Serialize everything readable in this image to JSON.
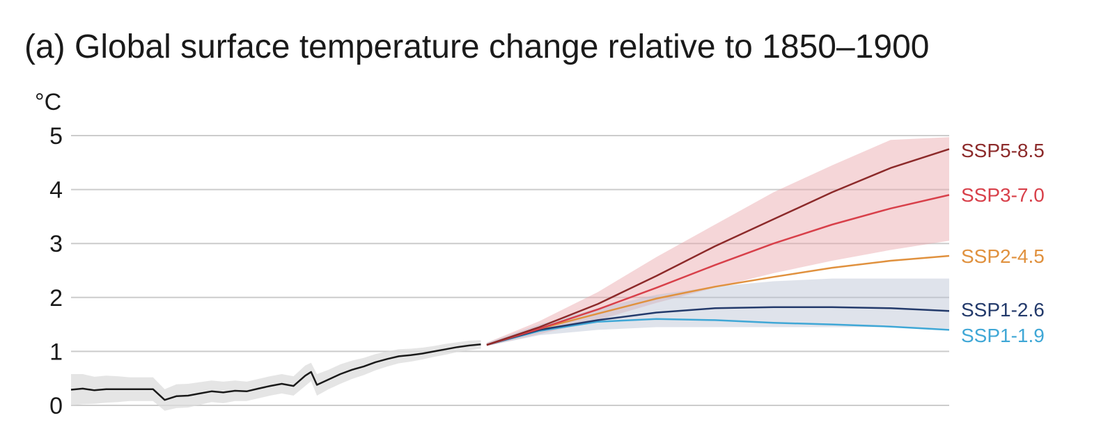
{
  "chart_data": {
    "type": "line",
    "title": "(a) Global surface temperature change relative to 1850–1900",
    "ylabel": "°C",
    "xlabel": "",
    "ylim": [
      0,
      5
    ],
    "xlim": [
      1950,
      2100
    ],
    "yticks": [
      "0",
      "1",
      "2",
      "3",
      "4",
      "5"
    ],
    "grid": true,
    "colors": {
      "historical": "#1a1a1a",
      "historical_band": "#dcdcdc",
      "ssp585": "#8c2a2a",
      "ssp370": "#d8404a",
      "ssp245": "#e0913e",
      "ssp126": "#233a6b",
      "ssp119": "#3fa7d6",
      "band_high": "#e9a3a8",
      "band_low": "#b9c0d3",
      "gridline": "#cccccc"
    },
    "historical": {
      "x": [
        1950,
        1952,
        1954,
        1956,
        1958,
        1960,
        1962,
        1964,
        1966,
        1968,
        1970,
        1972,
        1974,
        1976,
        1978,
        1980,
        1982,
        1984,
        1986,
        1988,
        1990,
        1991,
        1992,
        1994,
        1996,
        1998,
        2000,
        2002,
        2004,
        2006,
        2008,
        2010,
        2012,
        2014,
        2016,
        2018,
        2020
      ],
      "y": [
        0.29,
        0.31,
        0.28,
        0.3,
        0.3,
        0.3,
        0.3,
        0.3,
        0.1,
        0.17,
        0.18,
        0.22,
        0.26,
        0.24,
        0.27,
        0.26,
        0.31,
        0.36,
        0.4,
        0.36,
        0.55,
        0.62,
        0.38,
        0.48,
        0.58,
        0.66,
        0.72,
        0.8,
        0.86,
        0.91,
        0.93,
        0.96,
        1.0,
        1.04,
        1.08,
        1.11,
        1.13
      ],
      "band_low": [
        0.0,
        0.02,
        0.03,
        0.05,
        0.06,
        0.08,
        0.08,
        0.08,
        -0.1,
        -0.05,
        -0.04,
        0.01,
        0.06,
        0.04,
        0.08,
        0.08,
        0.13,
        0.18,
        0.22,
        0.18,
        0.36,
        0.45,
        0.18,
        0.3,
        0.4,
        0.49,
        0.56,
        0.65,
        0.72,
        0.78,
        0.81,
        0.85,
        0.9,
        0.94,
        0.99,
        1.02,
        1.05
      ],
      "band_high": [
        0.58,
        0.58,
        0.53,
        0.55,
        0.54,
        0.52,
        0.52,
        0.52,
        0.3,
        0.39,
        0.4,
        0.43,
        0.46,
        0.44,
        0.46,
        0.44,
        0.49,
        0.54,
        0.58,
        0.54,
        0.74,
        0.79,
        0.58,
        0.66,
        0.76,
        0.83,
        0.88,
        0.95,
        1.0,
        1.04,
        1.05,
        1.07,
        1.1,
        1.14,
        1.17,
        1.2,
        1.21
      ]
    },
    "projections_x": [
      2021,
      2030,
      2040,
      2050,
      2060,
      2070,
      2080,
      2090,
      2100
    ],
    "series": [
      {
        "key": "ssp585",
        "name": "SSP5-8.5",
        "values": [
          1.12,
          1.45,
          1.88,
          2.4,
          2.95,
          3.45,
          3.95,
          4.4,
          4.75
        ]
      },
      {
        "key": "ssp370",
        "name": "SSP3-7.0",
        "values": [
          1.12,
          1.42,
          1.78,
          2.18,
          2.6,
          3.0,
          3.35,
          3.65,
          3.9
        ]
      },
      {
        "key": "ssp245",
        "name": "SSP2-4.5",
        "values": [
          1.12,
          1.42,
          1.7,
          1.98,
          2.2,
          2.38,
          2.55,
          2.68,
          2.77
        ]
      },
      {
        "key": "ssp126",
        "name": "SSP1-2.6",
        "values": [
          1.12,
          1.4,
          1.58,
          1.72,
          1.8,
          1.82,
          1.82,
          1.8,
          1.75
        ]
      },
      {
        "key": "ssp119",
        "name": "SSP1-1.9",
        "values": [
          1.12,
          1.38,
          1.55,
          1.6,
          1.58,
          1.53,
          1.5,
          1.46,
          1.4
        ]
      }
    ],
    "bands": [
      {
        "key": "band_high",
        "for": "SSP3-7.0",
        "low": [
          1.1,
          1.32,
          1.58,
          1.9,
          2.18,
          2.45,
          2.68,
          2.88,
          3.05
        ],
        "high": [
          1.16,
          1.56,
          2.1,
          2.75,
          3.35,
          3.95,
          4.45,
          4.92,
          4.97
        ]
      },
      {
        "key": "band_low",
        "for": "SSP1-2.6",
        "low": [
          1.1,
          1.3,
          1.4,
          1.45,
          1.45,
          1.45,
          1.45,
          1.45,
          1.42
        ],
        "high": [
          1.16,
          1.5,
          1.8,
          2.05,
          2.2,
          2.3,
          2.35,
          2.35,
          2.35
        ]
      }
    ]
  }
}
